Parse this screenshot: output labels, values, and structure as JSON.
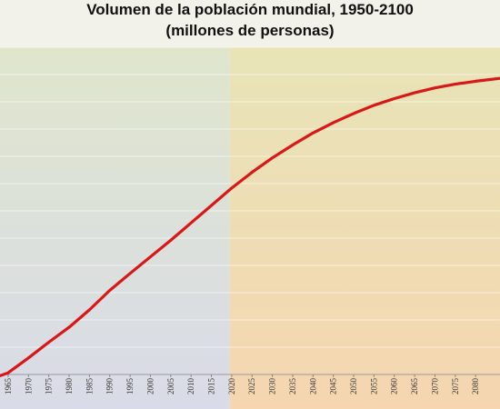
{
  "chart_data": {
    "type": "line",
    "title": "Volumen de la población mundial, 1950-2100",
    "subtitle": "(millones de personas)",
    "xlabel": "",
    "ylabel": "",
    "xlim": [
      1963,
      2086
    ],
    "ylim": [
      3300,
      11200
    ],
    "x_ticks": [
      "1965",
      "1970",
      "1975",
      "1980",
      "1985",
      "1990",
      "1995",
      "2000",
      "2005",
      "2010",
      "2015",
      "2020",
      "2025",
      "2030",
      "2035",
      "2040",
      "2045",
      "2050",
      "2055",
      "2060",
      "2065",
      "2070",
      "2075",
      "2080"
    ],
    "grid": true,
    "legend": "none",
    "series": [
      {
        "color": "#d81818",
        "x": [
          1963,
          1965,
          1970,
          1975,
          1980,
          1985,
          1990,
          1995,
          2000,
          2005,
          2010,
          2015,
          2020,
          2025,
          2030,
          2035,
          2040,
          2045,
          2050,
          2055,
          2060,
          2065,
          2070,
          2075,
          2080,
          2086
        ],
        "values": [
          3270,
          3340,
          3700,
          4080,
          4440,
          4860,
          5330,
          5740,
          6140,
          6540,
          6960,
          7380,
          7800,
          8180,
          8530,
          8840,
          9130,
          9380,
          9600,
          9800,
          9960,
          10100,
          10220,
          10310,
          10380,
          10450
        ]
      }
    ]
  },
  "colors": {
    "line": "#d81818",
    "past_bg_top": "#dfe6cc",
    "past_bg_bottom": "#d9dbe8",
    "future_bg_top": "#e8e4b8",
    "future_bg_bottom": "#f5d6b0"
  }
}
